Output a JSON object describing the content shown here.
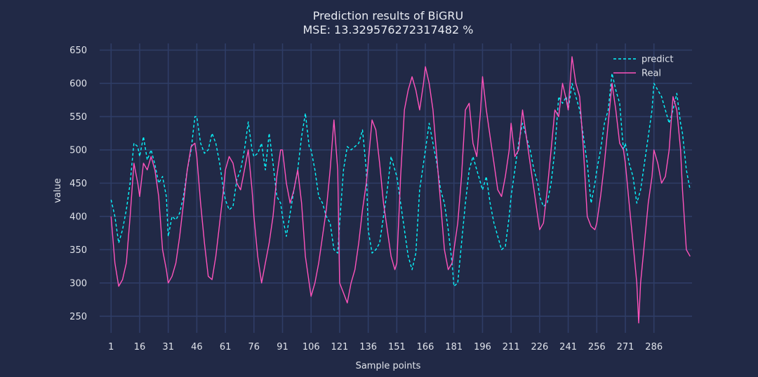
{
  "chart_data": {
    "type": "line",
    "title": "Prediction results of BiGRU",
    "subtitle": "MSE: 13.329576272317482 %",
    "xlabel": "Sample points",
    "ylabel": "value",
    "xlim": [
      -5,
      306
    ],
    "ylim": [
      225,
      660
    ],
    "x_ticks": [
      1,
      16,
      31,
      46,
      61,
      76,
      91,
      106,
      121,
      136,
      151,
      166,
      181,
      196,
      211,
      226,
      241,
      256,
      271,
      286
    ],
    "y_ticks": [
      250,
      300,
      350,
      400,
      450,
      500,
      550,
      600,
      650
    ],
    "grid": true,
    "legend_position": "top-right",
    "series": [
      {
        "name": "predict",
        "color": "#08F7FE",
        "style": "dashed",
        "points": [
          [
            1,
            425
          ],
          [
            3,
            400
          ],
          [
            5,
            360
          ],
          [
            7,
            380
          ],
          [
            9,
            410
          ],
          [
            11,
            450
          ],
          [
            13,
            510
          ],
          [
            15,
            505
          ],
          [
            16,
            490
          ],
          [
            18,
            520
          ],
          [
            20,
            485
          ],
          [
            22,
            500
          ],
          [
            24,
            478
          ],
          [
            26,
            450
          ],
          [
            28,
            460
          ],
          [
            30,
            430
          ],
          [
            31,
            370
          ],
          [
            33,
            400
          ],
          [
            35,
            395
          ],
          [
            37,
            405
          ],
          [
            39,
            430
          ],
          [
            41,
            470
          ],
          [
            43,
            500
          ],
          [
            45,
            550
          ],
          [
            46,
            550
          ],
          [
            48,
            510
          ],
          [
            50,
            495
          ],
          [
            52,
            500
          ],
          [
            54,
            525
          ],
          [
            56,
            510
          ],
          [
            58,
            480
          ],
          [
            60,
            440
          ],
          [
            61,
            425
          ],
          [
            63,
            410
          ],
          [
            65,
            415
          ],
          [
            67,
            455
          ],
          [
            69,
            470
          ],
          [
            71,
            500
          ],
          [
            73,
            542
          ],
          [
            75,
            500
          ],
          [
            76,
            490
          ],
          [
            78,
            495
          ],
          [
            80,
            510
          ],
          [
            82,
            470
          ],
          [
            84,
            525
          ],
          [
            86,
            480
          ],
          [
            88,
            430
          ],
          [
            90,
            420
          ],
          [
            91,
            400
          ],
          [
            93,
            370
          ],
          [
            95,
            405
          ],
          [
            97,
            440
          ],
          [
            99,
            470
          ],
          [
            101,
            520
          ],
          [
            103,
            555
          ],
          [
            105,
            505
          ],
          [
            106,
            500
          ],
          [
            108,
            470
          ],
          [
            110,
            430
          ],
          [
            112,
            420
          ],
          [
            114,
            400
          ],
          [
            116,
            390
          ],
          [
            118,
            350
          ],
          [
            120,
            345
          ],
          [
            121,
            390
          ],
          [
            123,
            470
          ],
          [
            125,
            505
          ],
          [
            127,
            500
          ],
          [
            129,
            505
          ],
          [
            131,
            510
          ],
          [
            133,
            530
          ],
          [
            135,
            470
          ],
          [
            136,
            380
          ],
          [
            138,
            345
          ],
          [
            140,
            350
          ],
          [
            142,
            360
          ],
          [
            144,
            400
          ],
          [
            146,
            440
          ],
          [
            148,
            490
          ],
          [
            150,
            470
          ],
          [
            151,
            460
          ],
          [
            153,
            420
          ],
          [
            155,
            380
          ],
          [
            157,
            340
          ],
          [
            159,
            320
          ],
          [
            161,
            345
          ],
          [
            163,
            440
          ],
          [
            165,
            480
          ],
          [
            166,
            500
          ],
          [
            168,
            540
          ],
          [
            170,
            510
          ],
          [
            172,
            480
          ],
          [
            174,
            440
          ],
          [
            176,
            420
          ],
          [
            178,
            380
          ],
          [
            180,
            330
          ],
          [
            181,
            295
          ],
          [
            183,
            300
          ],
          [
            185,
            360
          ],
          [
            187,
            420
          ],
          [
            189,
            470
          ],
          [
            191,
            490
          ],
          [
            193,
            470
          ],
          [
            195,
            450
          ],
          [
            196,
            440
          ],
          [
            198,
            460
          ],
          [
            200,
            420
          ],
          [
            202,
            390
          ],
          [
            204,
            370
          ],
          [
            206,
            350
          ],
          [
            208,
            355
          ],
          [
            210,
            400
          ],
          [
            211,
            430
          ],
          [
            213,
            470
          ],
          [
            215,
            510
          ],
          [
            217,
            540
          ],
          [
            219,
            520
          ],
          [
            221,
            500
          ],
          [
            223,
            470
          ],
          [
            225,
            450
          ],
          [
            226,
            430
          ],
          [
            228,
            415
          ],
          [
            230,
            420
          ],
          [
            232,
            450
          ],
          [
            234,
            500
          ],
          [
            236,
            580
          ],
          [
            238,
            570
          ],
          [
            240,
            580
          ],
          [
            241,
            560
          ],
          [
            243,
            600
          ],
          [
            245,
            580
          ],
          [
            247,
            560
          ],
          [
            249,
            520
          ],
          [
            251,
            480
          ],
          [
            253,
            420
          ],
          [
            255,
            450
          ],
          [
            256,
            470
          ],
          [
            258,
            500
          ],
          [
            260,
            540
          ],
          [
            262,
            560
          ],
          [
            264,
            615
          ],
          [
            266,
            590
          ],
          [
            268,
            570
          ],
          [
            270,
            500
          ],
          [
            271,
            510
          ],
          [
            273,
            480
          ],
          [
            275,
            460
          ],
          [
            277,
            420
          ],
          [
            279,
            440
          ],
          [
            281,
            480
          ],
          [
            283,
            520
          ],
          [
            285,
            560
          ],
          [
            286,
            600
          ],
          [
            288,
            590
          ],
          [
            290,
            580
          ],
          [
            292,
            560
          ],
          [
            294,
            540
          ],
          [
            296,
            560
          ],
          [
            298,
            585
          ],
          [
            300,
            540
          ],
          [
            301,
            525
          ],
          [
            303,
            470
          ],
          [
            305,
            440
          ]
        ]
      },
      {
        "name": "Real",
        "color": "#FE53BB",
        "style": "solid",
        "points": [
          [
            1,
            400
          ],
          [
            3,
            330
          ],
          [
            5,
            295
          ],
          [
            7,
            305
          ],
          [
            9,
            330
          ],
          [
            11,
            400
          ],
          [
            13,
            480
          ],
          [
            15,
            450
          ],
          [
            16,
            430
          ],
          [
            18,
            480
          ],
          [
            20,
            470
          ],
          [
            22,
            490
          ],
          [
            24,
            470
          ],
          [
            26,
            430
          ],
          [
            28,
            350
          ],
          [
            30,
            320
          ],
          [
            31,
            300
          ],
          [
            33,
            310
          ],
          [
            35,
            330
          ],
          [
            37,
            370
          ],
          [
            39,
            420
          ],
          [
            41,
            470
          ],
          [
            43,
            505
          ],
          [
            45,
            510
          ],
          [
            46,
            490
          ],
          [
            48,
            420
          ],
          [
            50,
            360
          ],
          [
            52,
            310
          ],
          [
            54,
            305
          ],
          [
            56,
            340
          ],
          [
            58,
            390
          ],
          [
            60,
            440
          ],
          [
            61,
            470
          ],
          [
            63,
            490
          ],
          [
            65,
            480
          ],
          [
            67,
            450
          ],
          [
            69,
            440
          ],
          [
            71,
            470
          ],
          [
            73,
            500
          ],
          [
            75,
            440
          ],
          [
            76,
            400
          ],
          [
            78,
            340
          ],
          [
            80,
            300
          ],
          [
            82,
            330
          ],
          [
            84,
            360
          ],
          [
            86,
            400
          ],
          [
            88,
            460
          ],
          [
            90,
            500
          ],
          [
            91,
            500
          ],
          [
            93,
            450
          ],
          [
            95,
            420
          ],
          [
            97,
            440
          ],
          [
            99,
            470
          ],
          [
            101,
            420
          ],
          [
            103,
            340
          ],
          [
            105,
            300
          ],
          [
            106,
            280
          ],
          [
            108,
            300
          ],
          [
            110,
            330
          ],
          [
            112,
            370
          ],
          [
            114,
            410
          ],
          [
            116,
            470
          ],
          [
            118,
            545
          ],
          [
            120,
            470
          ],
          [
            121,
            300
          ],
          [
            123,
            285
          ],
          [
            125,
            270
          ],
          [
            127,
            300
          ],
          [
            129,
            320
          ],
          [
            131,
            360
          ],
          [
            133,
            410
          ],
          [
            135,
            450
          ],
          [
            136,
            480
          ],
          [
            138,
            545
          ],
          [
            140,
            530
          ],
          [
            142,
            480
          ],
          [
            144,
            420
          ],
          [
            146,
            380
          ],
          [
            148,
            340
          ],
          [
            150,
            320
          ],
          [
            151,
            330
          ],
          [
            153,
            460
          ],
          [
            155,
            560
          ],
          [
            157,
            590
          ],
          [
            159,
            610
          ],
          [
            161,
            590
          ],
          [
            163,
            560
          ],
          [
            165,
            600
          ],
          [
            166,
            625
          ],
          [
            168,
            600
          ],
          [
            170,
            560
          ],
          [
            172,
            490
          ],
          [
            174,
            420
          ],
          [
            176,
            350
          ],
          [
            178,
            320
          ],
          [
            180,
            330
          ],
          [
            181,
            350
          ],
          [
            183,
            390
          ],
          [
            185,
            460
          ],
          [
            187,
            560
          ],
          [
            189,
            570
          ],
          [
            191,
            510
          ],
          [
            193,
            490
          ],
          [
            195,
            560
          ],
          [
            196,
            610
          ],
          [
            198,
            560
          ],
          [
            200,
            520
          ],
          [
            202,
            480
          ],
          [
            204,
            440
          ],
          [
            206,
            430
          ],
          [
            208,
            460
          ],
          [
            210,
            500
          ],
          [
            211,
            540
          ],
          [
            213,
            490
          ],
          [
            215,
            500
          ],
          [
            217,
            560
          ],
          [
            219,
            520
          ],
          [
            221,
            480
          ],
          [
            223,
            440
          ],
          [
            225,
            400
          ],
          [
            226,
            380
          ],
          [
            228,
            390
          ],
          [
            230,
            440
          ],
          [
            232,
            500
          ],
          [
            234,
            560
          ],
          [
            236,
            550
          ],
          [
            238,
            600
          ],
          [
            240,
            575
          ],
          [
            241,
            560
          ],
          [
            243,
            640
          ],
          [
            245,
            600
          ],
          [
            247,
            580
          ],
          [
            249,
            500
          ],
          [
            251,
            400
          ],
          [
            253,
            385
          ],
          [
            255,
            380
          ],
          [
            256,
            390
          ],
          [
            258,
            430
          ],
          [
            260,
            480
          ],
          [
            262,
            540
          ],
          [
            264,
            600
          ],
          [
            266,
            560
          ],
          [
            268,
            510
          ],
          [
            270,
            500
          ],
          [
            271,
            480
          ],
          [
            273,
            420
          ],
          [
            275,
            360
          ],
          [
            277,
            300
          ],
          [
            278,
            240
          ],
          [
            279,
            300
          ],
          [
            281,
            360
          ],
          [
            283,
            420
          ],
          [
            285,
            460
          ],
          [
            286,
            500
          ],
          [
            288,
            480
          ],
          [
            290,
            450
          ],
          [
            292,
            460
          ],
          [
            294,
            500
          ],
          [
            296,
            580
          ],
          [
            298,
            560
          ],
          [
            300,
            500
          ],
          [
            301,
            440
          ],
          [
            303,
            350
          ],
          [
            305,
            340
          ]
        ]
      }
    ]
  }
}
